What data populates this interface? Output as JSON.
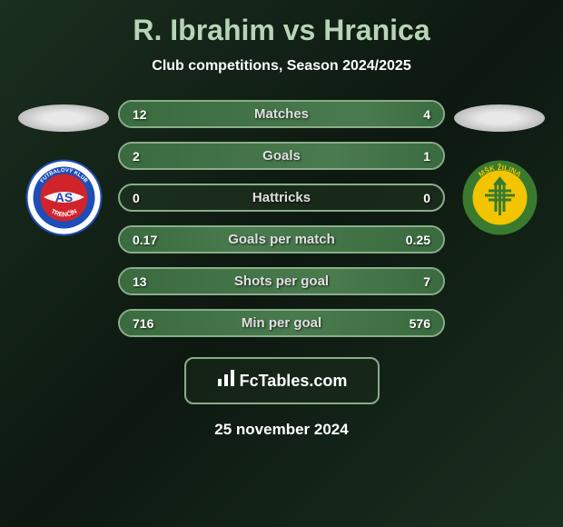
{
  "title": "R. Ibrahim vs Hranica",
  "subtitle": "Club competitions, Season 2024/2025",
  "date": "25 november 2024",
  "footer_brand": "FcTables.com",
  "left_player": {
    "team_logo": {
      "outer_bg": "#ffffff",
      "ring_color": "#1e4db7",
      "inner_bg": "#d1232a",
      "text_top": "FUTBALOVÝ KLUB",
      "text_bottom": "TRENČÍN",
      "center_text": "AS"
    }
  },
  "right_player": {
    "team_logo": {
      "outer_bg": "#3a7a2e",
      "ring_text": "MŠK ŽILINA",
      "inner_bg": "#f2c500",
      "cross_color": "#3a7a2e"
    }
  },
  "stats": [
    {
      "label": "Matches",
      "left_value": "12",
      "right_value": "4",
      "left_pct": 75,
      "right_pct": 25
    },
    {
      "label": "Goals",
      "left_value": "2",
      "right_value": "1",
      "left_pct": 67,
      "right_pct": 33
    },
    {
      "label": "Hattricks",
      "left_value": "0",
      "right_value": "0",
      "left_pct": 0,
      "right_pct": 0
    },
    {
      "label": "Goals per match",
      "left_value": "0.17",
      "right_value": "0.25",
      "left_pct": 40,
      "right_pct": 60
    },
    {
      "label": "Shots per goal",
      "left_value": "13",
      "right_value": "7",
      "left_pct": 65,
      "right_pct": 35
    },
    {
      "label": "Min per goal",
      "left_value": "716",
      "right_value": "576",
      "left_pct": 55,
      "right_pct": 45
    }
  ],
  "colors": {
    "title_color": "#b8d4b8",
    "text_color": "#ffffff",
    "border_color": "#8aad8a",
    "fill_color": "#3a6b3f"
  }
}
